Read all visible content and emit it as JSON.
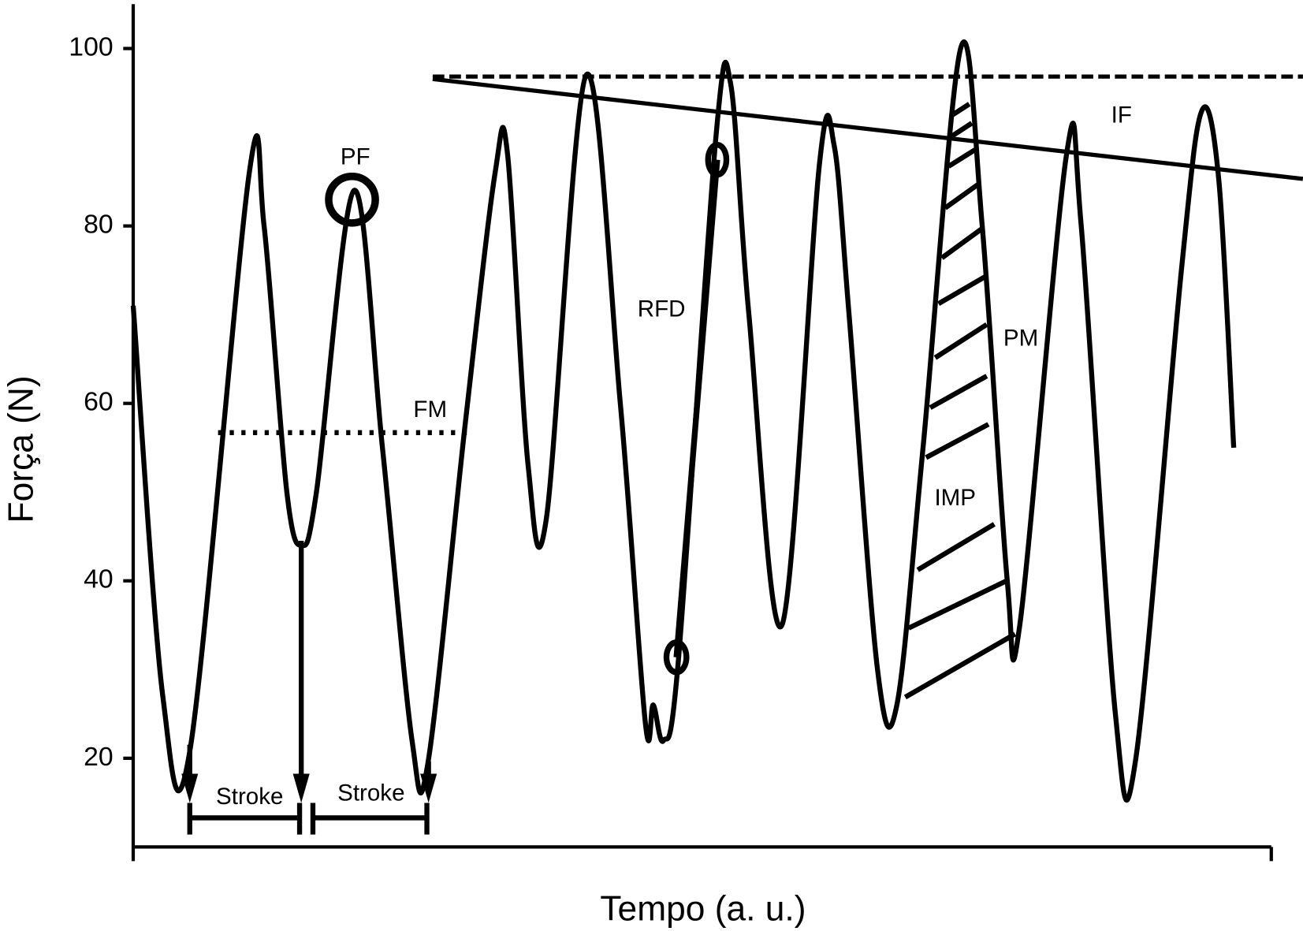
{
  "chart_data": {
    "type": "line",
    "xlabel": "Tempo (a. u.)",
    "ylabel": "Força (N)",
    "xlim": [
      0,
      100
    ],
    "ylim": [
      10,
      105
    ],
    "yticks": [
      20,
      40,
      60,
      80,
      100
    ],
    "x": [
      0,
      2.6,
      5.0,
      10.2,
      11.5,
      13.5,
      14.8,
      16.1,
      19.4,
      21.9,
      24.5,
      25.9,
      29.2,
      31.8,
      32.9,
      34.7,
      36.3,
      39.8,
      42.8,
      45.0,
      45.7,
      46.6,
      47.9,
      51.2,
      52.5,
      54.1,
      57.0,
      60.3,
      61.6,
      62.9,
      65.4,
      67.1,
      69.4,
      72.7,
      74.6,
      76.8,
      77.9,
      82.0,
      83.3,
      86.3,
      88.1,
      92.1,
      93.9,
      95.4,
      96.7
    ],
    "series": [
      {
        "color": "#000000",
        "values": [
          71,
          27,
          21,
          86,
          80,
          50,
          44,
          50,
          84,
          55,
          22,
          19.5,
          58,
          86,
          88,
          53,
          47,
          97,
          60,
          24,
          26,
          22,
          31,
          90,
          96,
          70,
          35,
          87,
          89,
          70,
          30,
          26,
          55,
          100,
          80,
          40,
          35,
          88,
          80,
          25,
          20,
          75,
          93,
          85,
          55
        ]
      }
    ],
    "annotations": [
      "PF",
      "FM",
      "RFD",
      "IF",
      "PM",
      "IMP",
      "Stroke",
      "Stroke"
    ]
  }
}
